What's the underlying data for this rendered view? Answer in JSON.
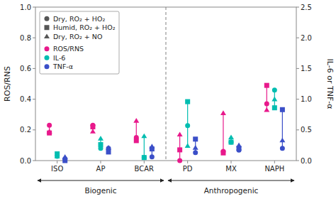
{
  "chart_data": {
    "type": "dot_range",
    "categories": [
      "ISO",
      "AP",
      "BCAR",
      "PD",
      "MX",
      "NAPH"
    ],
    "ylabel": "ROS/RNS",
    "y2label": "IL-6 or TNF-α",
    "ylim": [
      0.0,
      1.0
    ],
    "yticks": [
      {
        "value": 0.0,
        "label": "0.0"
      },
      0.2,
      0.4,
      0.6,
      0.8,
      {
        "value": 1.0,
        "label": "1.0"
      }
    ],
    "y2lim": [
      0.0,
      2.5
    ],
    "y2ticks": [
      {
        "value": 0.0,
        "label": "0.0"
      },
      0.5,
      {
        "value": 1.0,
        "label": "1.0"
      },
      1.5,
      {
        "value": 2.0,
        "label": "2.0"
      },
      2.5
    ],
    "grid": false,
    "legend": "upper left",
    "conditions": [
      {
        "name": "Dry, RO₂ + HO₂",
        "marker": "circle"
      },
      {
        "name": "Humid, RO₂ + HO₂",
        "marker": "square"
      },
      {
        "name": "Dry, RO₂ + NO",
        "marker": "triangle"
      }
    ],
    "series": [
      {
        "name": "ROS/RNS",
        "color": "#E8198B",
        "axis": "y",
        "values": [
          [
            0.23,
            0.23,
            0.15,
            0.0,
            0.06,
            0.37
          ],
          [
            0.18,
            0.22,
            0.13,
            0.07,
            0.05,
            0.49
          ],
          [
            0.19,
            0.19,
            0.26,
            0.17,
            0.31,
            0.33
          ]
        ]
      },
      {
        "name": "IL-6",
        "color": "#00BDB0",
        "axis": "y2",
        "values": [
          [
            0.07,
            0.2,
            0.05,
            0.57,
            0.3,
            1.15
          ],
          [
            0.11,
            0.26,
            0.05,
            0.96,
            0.3,
            0.86
          ],
          [
            0.07,
            0.36,
            0.4,
            0.24,
            0.38,
            1.0
          ]
        ]
      },
      {
        "name": "TNF-α",
        "color": "#3B4FC8",
        "axis": "y2",
        "values": [
          [
            0.03,
            0.2,
            0.06,
            0.13,
            0.17,
            0.2
          ],
          [
            0.0,
            0.14,
            0.19,
            0.35,
            0.2,
            0.83
          ],
          [
            0.06,
            0.21,
            0.23,
            0.21,
            0.25,
            0.33
          ]
        ]
      }
    ],
    "annotations": [
      {
        "text": "Biogenic",
        "from": "ISO",
        "to": "BCAR"
      },
      {
        "text": "Anthropogenic",
        "from": "PD",
        "to": "NAPH"
      }
    ]
  }
}
